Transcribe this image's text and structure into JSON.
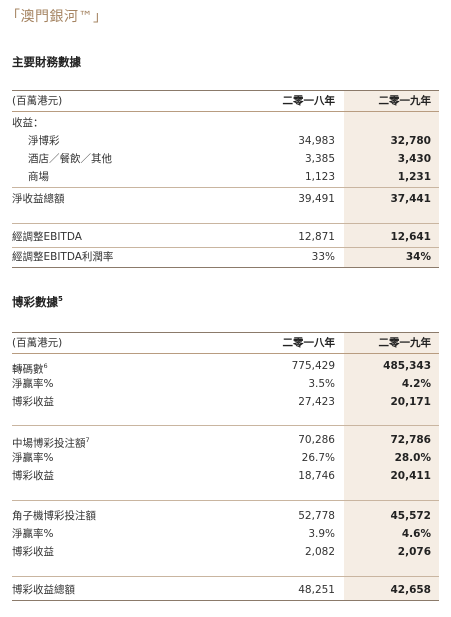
{
  "page_header": "「澳門銀河™」",
  "section1": {
    "title": "主要財務數據",
    "unit_label": "(百萬港元)",
    "col_2018": "二零一八年",
    "col_2019": "二零一九年",
    "revenue_label": "收益：",
    "rows": [
      {
        "label": "淨博彩",
        "v2018": "34,983",
        "v2019": "32,780"
      },
      {
        "label": "酒店／餐飲／其他",
        "v2018": "3,385",
        "v2019": "3,430"
      },
      {
        "label": "商場",
        "v2018": "1,123",
        "v2019": "1,231"
      }
    ],
    "net_revenue": {
      "label": "淨收益總額",
      "v2018": "39,491",
      "v2019": "37,441"
    },
    "ebitda": {
      "label": "經調整EBITDA",
      "v2018": "12,871",
      "v2019": "12,641"
    },
    "ebitda_margin": {
      "label": "經調整EBITDA利潤率",
      "v2018": "33%",
      "v2019": "34%"
    }
  },
  "section2": {
    "title": "博彩數據",
    "title_note": "5",
    "unit_label": "(百萬港元)",
    "col_2018": "二零一八年",
    "col_2019": "二零一九年",
    "group1": [
      {
        "label": "轉碼數",
        "note": "6",
        "v2018": "775,429",
        "v2019": "485,343"
      },
      {
        "label": "淨贏率%",
        "note": "",
        "v2018": "3.5%",
        "v2019": "4.2%"
      },
      {
        "label": "博彩收益",
        "note": "",
        "v2018": "27,423",
        "v2019": "20,171"
      }
    ],
    "group2": [
      {
        "label": "中場博彩投注額",
        "note": "7",
        "v2018": "70,286",
        "v2019": "72,786"
      },
      {
        "label": "淨贏率%",
        "note": "",
        "v2018": "26.7%",
        "v2019": "28.0%"
      },
      {
        "label": "博彩收益",
        "note": "",
        "v2018": "18,746",
        "v2019": "20,411"
      }
    ],
    "group3": [
      {
        "label": "角子機博彩投注額",
        "note": "",
        "v2018": "52,778",
        "v2019": "45,572"
      },
      {
        "label": "淨贏率%",
        "note": "",
        "v2018": "3.9%",
        "v2019": "4.6%"
      },
      {
        "label": "博彩收益",
        "note": "",
        "v2018": "2,082",
        "v2019": "2,076"
      }
    ],
    "total": {
      "label": "博彩收益總額",
      "v2018": "48,251",
      "v2019": "42,658"
    }
  }
}
